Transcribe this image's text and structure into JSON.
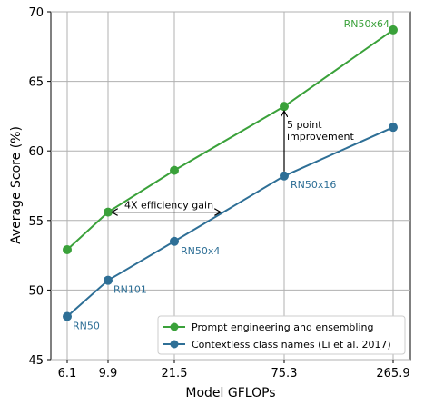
{
  "chart_data": {
    "type": "line",
    "x": [
      "6.1",
      "9.9",
      "21.5",
      "75.3",
      "265.9"
    ],
    "xlabel": "Model GFLOPs",
    "ylabel": "Average Score (%)",
    "ylim": [
      45,
      70
    ],
    "yticks": [
      "45",
      "50",
      "55",
      "60",
      "65",
      "70"
    ],
    "grid": true,
    "legend_position": "lower-right",
    "series": [
      {
        "name": "Prompt engineering and ensembling",
        "color": "#3aa13a",
        "values": [
          52.9,
          55.6,
          58.6,
          63.2,
          68.7
        ],
        "point_labels": [
          "",
          "",
          "",
          "",
          "RN50x64"
        ]
      },
      {
        "name": "Contextless class names (Li et al. 2017)",
        "color": "#2e6f96",
        "values": [
          48.1,
          50.7,
          53.5,
          58.2,
          61.7
        ],
        "point_labels": [
          "RN50",
          "RN101",
          "RN50x4",
          "RN50x16",
          ""
        ]
      }
    ],
    "annotations": [
      {
        "text": "4X efficiency gain",
        "type": "horizontal-double-arrow",
        "from_x": "9.9",
        "to_x_between": [
          "21.5",
          "75.3"
        ],
        "y": 55.6
      },
      {
        "text": "5 point",
        "text2": "improvement",
        "type": "vertical-arrow",
        "x": "75.3",
        "from_y": 58.2,
        "to_y": 63.2
      }
    ]
  }
}
